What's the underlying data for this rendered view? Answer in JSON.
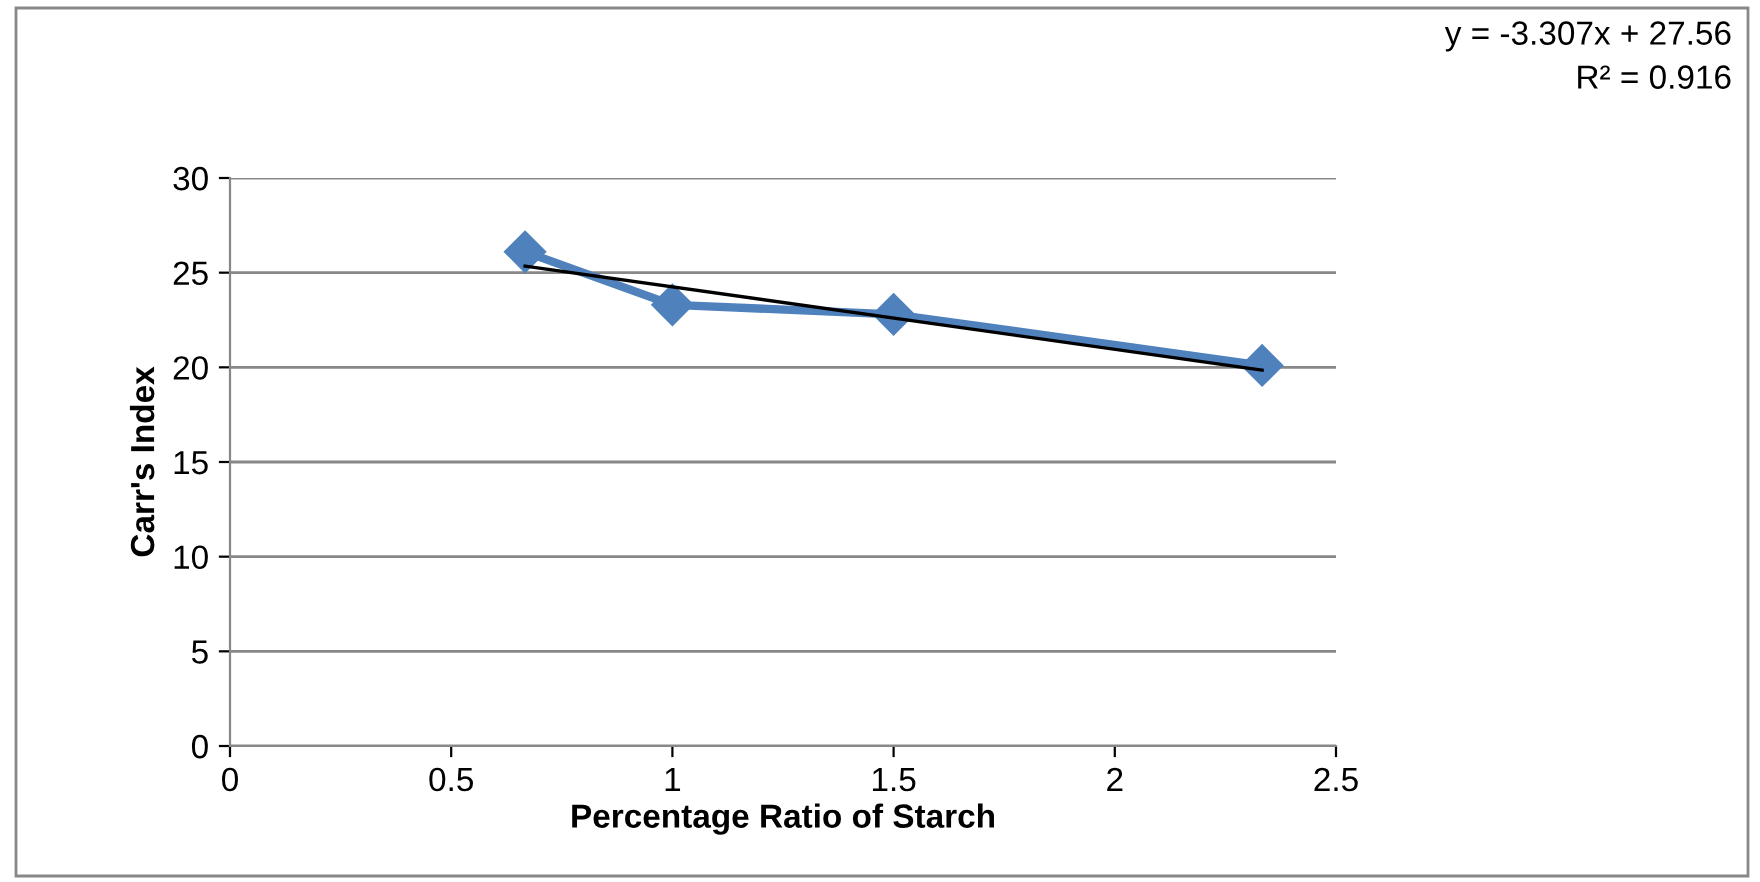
{
  "chart_data": {
    "type": "line",
    "xlabel": "Percentage Ratio of Starch",
    "ylabel": "Carr's Index",
    "xlim": [
      0,
      2.5
    ],
    "xticks": [
      0,
      0.5,
      1,
      1.5,
      2,
      2.5
    ],
    "ylim": [
      0,
      30
    ],
    "yticks": [
      0,
      5,
      10,
      15,
      20,
      25,
      30
    ],
    "grid": "y",
    "series": [
      {
        "color": "#4f81bd",
        "x": [
          0.667,
          1,
          1.5,
          2.333
        ],
        "values": [
          26.1,
          23.3,
          22.8,
          20.1
        ],
        "marker": "diamond"
      },
      {
        "color": "#000000",
        "x": [
          0.667,
          2.333
        ],
        "values": [
          25.35,
          19.85
        ],
        "marker": "none"
      }
    ],
    "annotations": [
      "y = -3.307x + 27.56",
      "R² = 0.916"
    ]
  }
}
